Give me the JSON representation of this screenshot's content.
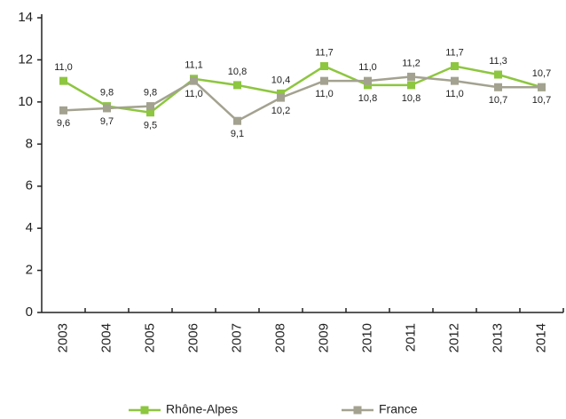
{
  "chart_data": {
    "type": "line",
    "categories": [
      "2003",
      "2004",
      "2005",
      "2006",
      "2007",
      "2008",
      "2009",
      "2010",
      "2011",
      "2012",
      "2013",
      "2014"
    ],
    "series": [
      {
        "name": "Rhône-Alpes",
        "color": "#8dc63f",
        "values": [
          11.0,
          9.8,
          9.5,
          11.1,
          10.8,
          10.4,
          11.7,
          10.8,
          10.8,
          11.7,
          11.3,
          10.7
        ],
        "value_labels": [
          "11,0",
          "9,8",
          "9,5",
          "11,1",
          "10,8",
          "10,4",
          "11,7",
          "10,8",
          "10,8",
          "11,7",
          "11,3",
          "10,7"
        ]
      },
      {
        "name": "France",
        "color": "#a3a290",
        "values": [
          9.6,
          9.7,
          9.8,
          11.0,
          9.1,
          10.2,
          11.0,
          11.0,
          11.2,
          11.0,
          10.7,
          10.7
        ],
        "value_labels": [
          "9,6",
          "9,7",
          "9,8",
          "11,0",
          "9,1",
          "10,2",
          "11,0",
          "11,0",
          "11,2",
          "11,0",
          "10,7",
          "10,7"
        ]
      }
    ],
    "ylim": [
      0,
      14
    ],
    "yticks": [
      0,
      2,
      4,
      6,
      8,
      10,
      12,
      14
    ],
    "grid": false,
    "legend": "bottom"
  }
}
